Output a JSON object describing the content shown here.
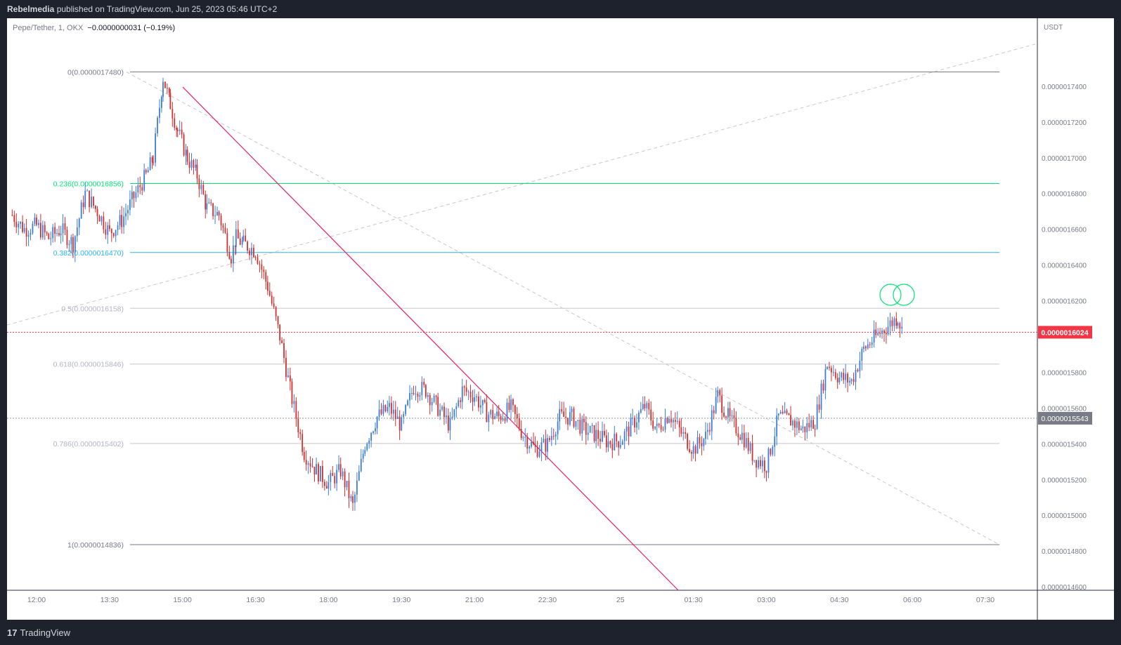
{
  "header": {
    "publisher": "Rebelmedia",
    "published_text": " published on TradingView.com, Jun 25, 2023 05:46 UTC+2"
  },
  "legend": {
    "symbol": "Pepe/Tether, 1, OKX",
    "change": "−0.0000000031 (−0.19%)"
  },
  "footer": {
    "brand": "TradingView",
    "logo": "17"
  },
  "colors": {
    "candle_up": "#3b7ddd",
    "candle_down": "#d32f2f",
    "fib_0_236": "#00e676",
    "fib_0_382": "#29b6f6",
    "fib_other": "#c8c8c8",
    "trendline": "#e91e63",
    "last_price_bg": "#f23645",
    "prev_price_bg": "#787b86",
    "circle": "#00e676"
  },
  "chart_data": {
    "type": "line",
    "title": "Pepe/Tether, 1, OKX",
    "ylabel": "USDT",
    "ylim": [
      1.45e-06,
      1.76e-06
    ],
    "xlim": [
      11.5,
      8.2
    ],
    "y_ticks": [
      "0.0000017400",
      "0.0000017200",
      "0.0000017000",
      "0.0000016800",
      "0.0000016600",
      "0.0000016400",
      "0.0000016200",
      "0.0000015800",
      "0.0000015600",
      "0.0000015400",
      "0.0000015200",
      "0.0000015000",
      "0.0000014800",
      "0.0000014600"
    ],
    "x_ticks": [
      {
        "label": "12:00",
        "t": 12.0
      },
      {
        "label": "13:30",
        "t": 13.5
      },
      {
        "label": "15:00",
        "t": 15.0
      },
      {
        "label": "16:30",
        "t": 16.5
      },
      {
        "label": "18:00",
        "t": 18.0
      },
      {
        "label": "19:30",
        "t": 19.5
      },
      {
        "label": "21:00",
        "t": 21.0
      },
      {
        "label": "22:30",
        "t": 22.5
      },
      {
        "label": "25",
        "t": 24.0
      },
      {
        "label": "01:30",
        "t": 25.5
      },
      {
        "label": "03:00",
        "t": 27.0
      },
      {
        "label": "04:30",
        "t": 28.5
      },
      {
        "label": "06:00",
        "t": 30.0
      },
      {
        "label": "07:30",
        "t": 31.5
      }
    ],
    "fib_levels": [
      {
        "label": "0(0.0000017480)",
        "value": 1.748e-06,
        "color": "#787b86"
      },
      {
        "label": "0.236(0.0000016856)",
        "value": 1.6856e-06,
        "color": "#00e676"
      },
      {
        "label": "0.382(0.0000016470)",
        "value": 1.647e-06,
        "color": "#29b6f6"
      },
      {
        "label": "0.5(0.0000016158)",
        "value": 1.6158e-06,
        "color": "#c8c8c8"
      },
      {
        "label": "0.618(0.0000015846)",
        "value": 1.5846e-06,
        "color": "#c8c8c8"
      },
      {
        "label": "0.786(0.0000015402)",
        "value": 1.5402e-06,
        "color": "#c8c8c8"
      },
      {
        "label": "1(0.0000014836)",
        "value": 1.4836e-06,
        "color": "#787b86"
      }
    ],
    "last_price": {
      "label": "0.0000016024",
      "value": 1.6024e-06
    },
    "prev_price": {
      "label": "0.0000015543",
      "value": 1.5543e-06
    },
    "series": [
      {
        "x": [
          11.5,
          11.75,
          12.0,
          12.25,
          12.5,
          12.75,
          13.0,
          13.25,
          13.5,
          13.75,
          14.0,
          14.25,
          14.4,
          14.6,
          14.75,
          14.9,
          15.1,
          15.3,
          15.5,
          15.75,
          16.0,
          16.1,
          16.25,
          16.5,
          16.75,
          17.0,
          17.25,
          17.5,
          17.75,
          18.0,
          18.25,
          18.5,
          18.75,
          19.0,
          19.25,
          19.5,
          19.75,
          20.0,
          20.25,
          20.5,
          20.75,
          21.0,
          21.25,
          21.5,
          21.75,
          22.0,
          22.25,
          22.5,
          22.75,
          23.0,
          23.25,
          23.5,
          23.75,
          24.0,
          24.25,
          24.5,
          24.75,
          25.0,
          25.25,
          25.5,
          25.75,
          26.0,
          26.25,
          26.5,
          26.75,
          27.0,
          27.25,
          27.5,
          27.75,
          28.0,
          28.25,
          28.5,
          28.75,
          29.0,
          29.25,
          29.5,
          29.7,
          29.8
        ],
        "values": [
          1.668e-06,
          1.66e-06,
          1.662e-06,
          1.655e-06,
          1.66e-06,
          1.652e-06,
          1.68e-06,
          1.67e-06,
          1.658e-06,
          1.665e-06,
          1.678e-06,
          1.69e-06,
          1.7e-06,
          1.745e-06,
          1.73e-06,
          1.715e-06,
          1.7e-06,
          1.69e-06,
          1.672e-06,
          1.668e-06,
          1.645e-06,
          1.655e-06,
          1.652e-06,
          1.648e-06,
          1.628e-06,
          1.6e-06,
          1.565e-06,
          1.535e-06,
          1.525e-06,
          1.518e-06,
          1.525e-06,
          1.505e-06,
          1.54e-06,
          1.555e-06,
          1.56e-06,
          1.55e-06,
          1.572e-06,
          1.57e-06,
          1.56e-06,
          1.55e-06,
          1.57e-06,
          1.567e-06,
          1.557e-06,
          1.555e-06,
          1.56e-06,
          1.545e-06,
          1.537e-06,
          1.54e-06,
          1.555e-06,
          1.555e-06,
          1.548e-06,
          1.545e-06,
          1.541e-06,
          1.542e-06,
          1.551e-06,
          1.561e-06,
          1.548e-06,
          1.557e-06,
          1.546e-06,
          1.537e-06,
          1.544e-06,
          1.567e-06,
          1.553e-06,
          1.545e-06,
          1.532e-06,
          1.528e-06,
          1.555e-06,
          1.553e-06,
          1.548e-06,
          1.553e-06,
          1.585e-06,
          1.577e-06,
          1.575e-06,
          1.593e-06,
          1.6e-06,
          1.606e-06,
          1.611e-06,
          1.602e-06
        ]
      }
    ]
  }
}
